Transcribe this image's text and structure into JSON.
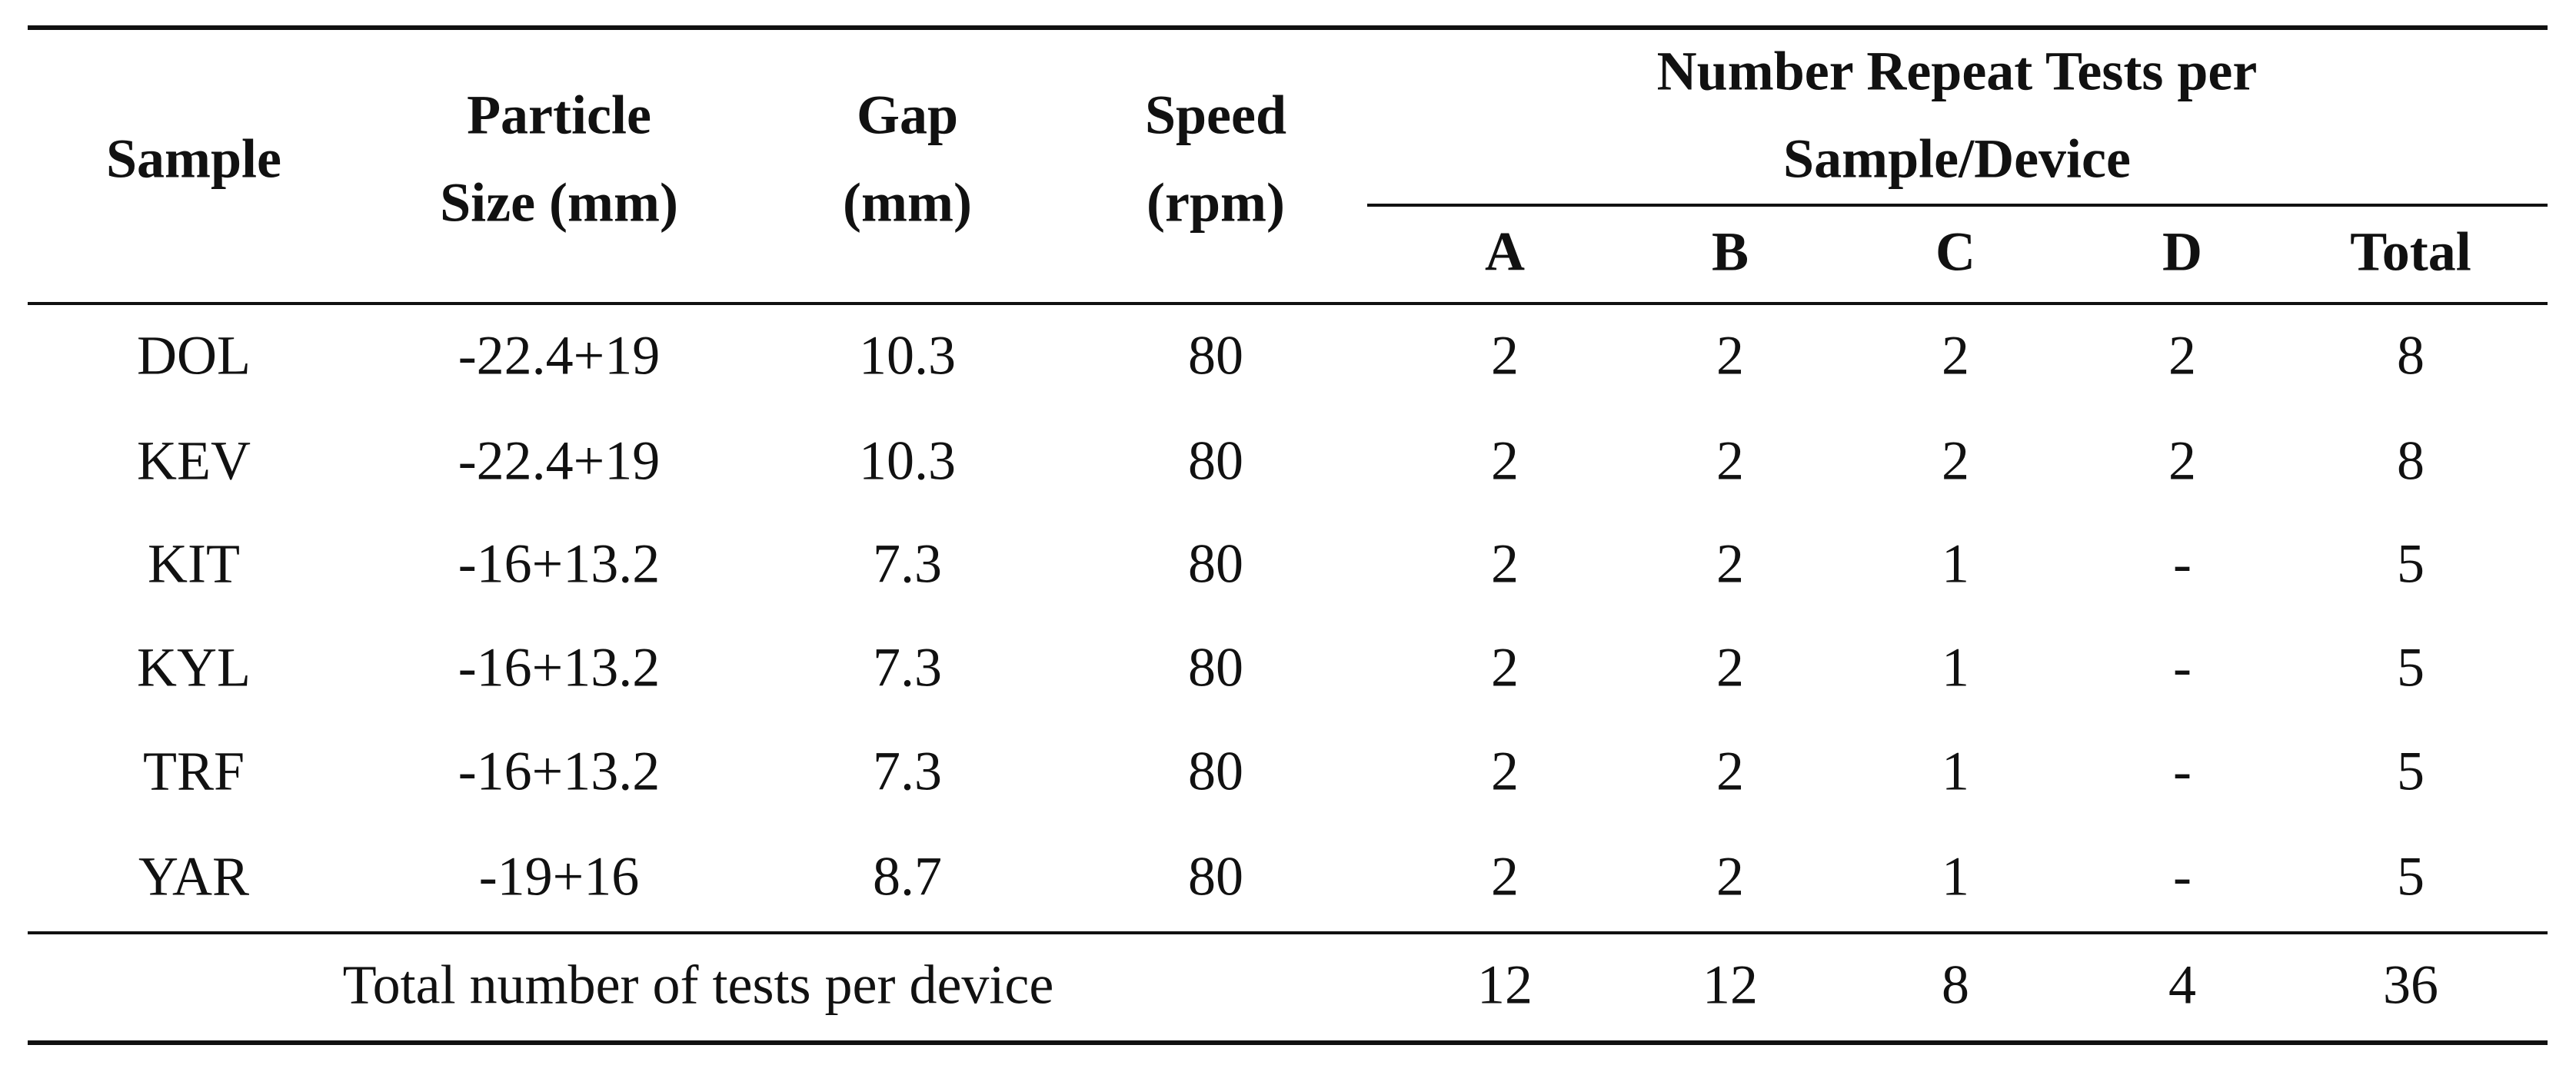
{
  "table": {
    "header": {
      "columns": [
        [
          "Sample"
        ],
        [
          "Particle",
          "Size (mm)"
        ],
        [
          "Gap",
          "(mm)"
        ],
        [
          "Speed",
          "(rpm)"
        ]
      ],
      "group": [
        "Number Repeat Tests per",
        "Sample/Device"
      ],
      "subcolumns": [
        "A",
        "B",
        "C",
        "D",
        "Total"
      ]
    },
    "rows": [
      [
        "DOL",
        "-22.4+19",
        10.3,
        80,
        2,
        2,
        2,
        2,
        8
      ],
      [
        "KEV",
        "-22.4+19",
        10.3,
        80,
        2,
        2,
        2,
        2,
        8
      ],
      [
        "KIT",
        "-16+13.2",
        7.3,
        80,
        2,
        2,
        1,
        "-",
        5
      ],
      [
        "KYL",
        "-16+13.2",
        7.3,
        80,
        2,
        2,
        1,
        "-",
        5
      ],
      [
        "TRF",
        "-16+13.2",
        7.3,
        80,
        2,
        2,
        1,
        "-",
        5
      ],
      [
        "YAR",
        "-19+16",
        8.7,
        80,
        2,
        2,
        1,
        "-",
        5
      ]
    ],
    "footer": {
      "label": "Total number of tests per device",
      "values": [
        12,
        12,
        8,
        4,
        36
      ]
    }
  }
}
